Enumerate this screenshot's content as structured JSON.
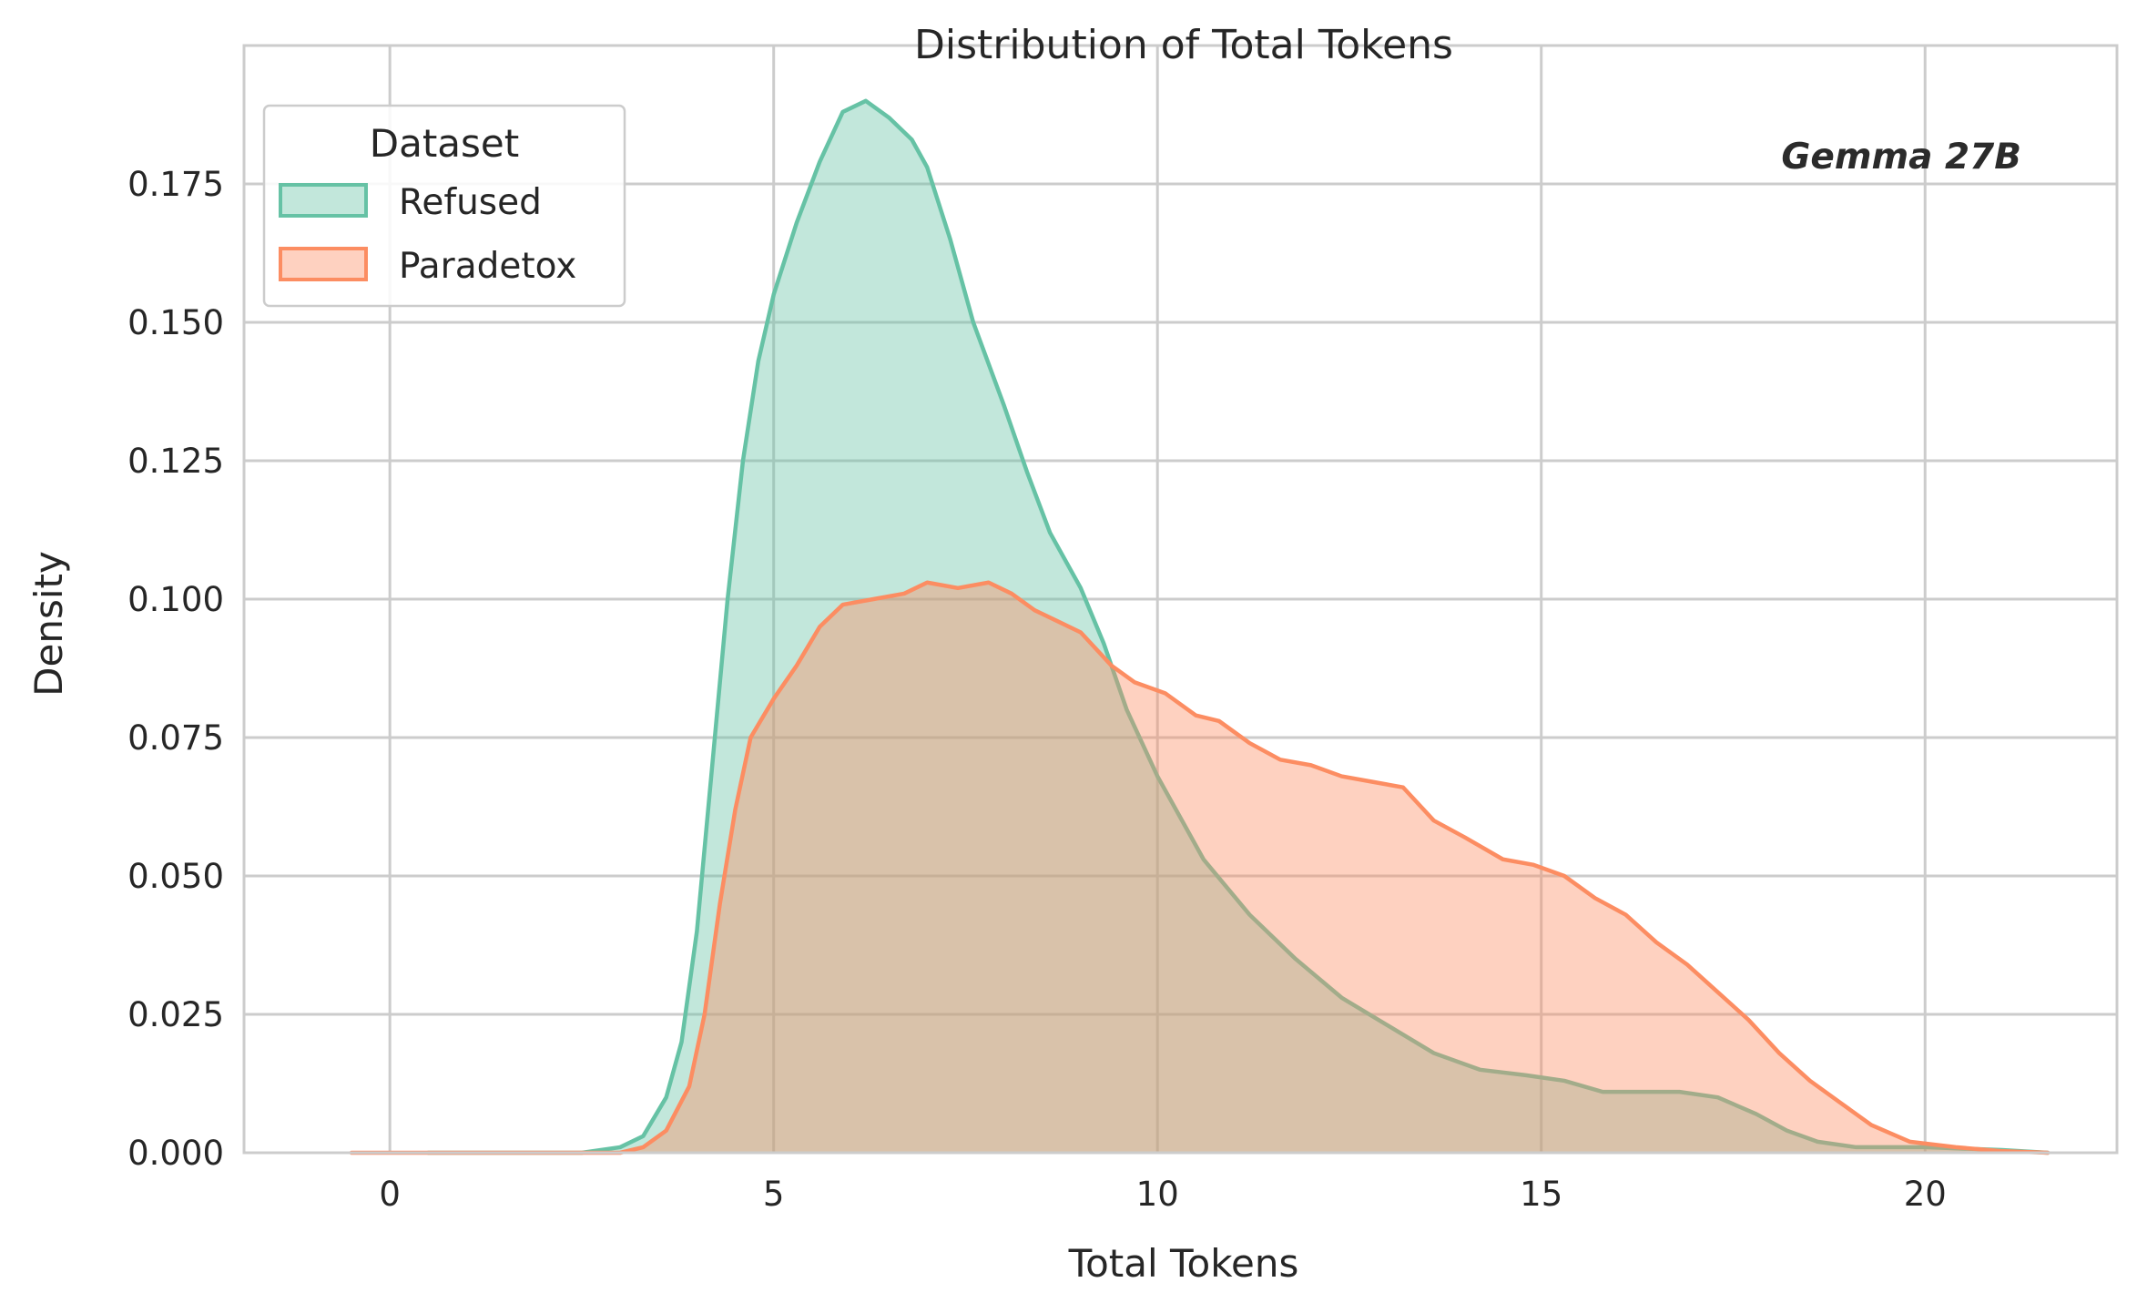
{
  "chart_data": {
    "type": "area",
    "title": "Distribution of Total Tokens",
    "xlabel": "Total Tokens",
    "ylabel": "Density",
    "xlim": [
      -1.9,
      22.5
    ],
    "ylim": [
      0,
      0.2
    ],
    "xticks": [
      0,
      5,
      10,
      15,
      20
    ],
    "yticks": [
      0.0,
      0.025,
      0.05,
      0.075,
      0.1,
      0.125,
      0.15,
      0.175
    ],
    "xtick_labels": [
      "0",
      "5",
      "10",
      "15",
      "20"
    ],
    "ytick_labels": [
      "0.000",
      "0.025",
      "0.050",
      "0.075",
      "0.100",
      "0.125",
      "0.150",
      "0.175"
    ],
    "grid": true,
    "legend": {
      "title": "Dataset",
      "position": "top-left"
    },
    "annotation": "Gemma 27B",
    "series": [
      {
        "name": "Refused",
        "color": "#66c2a5",
        "points": [
          [
            0.5,
            0.0
          ],
          [
            2.5,
            0.0
          ],
          [
            3.0,
            0.001
          ],
          [
            3.3,
            0.003
          ],
          [
            3.6,
            0.01
          ],
          [
            3.8,
            0.02
          ],
          [
            4.0,
            0.04
          ],
          [
            4.2,
            0.07
          ],
          [
            4.4,
            0.1
          ],
          [
            4.6,
            0.125
          ],
          [
            4.8,
            0.143
          ],
          [
            5.0,
            0.155
          ],
          [
            5.3,
            0.168
          ],
          [
            5.6,
            0.179
          ],
          [
            5.9,
            0.188
          ],
          [
            6.2,
            0.19
          ],
          [
            6.5,
            0.187
          ],
          [
            6.8,
            0.183
          ],
          [
            7.0,
            0.178
          ],
          [
            7.3,
            0.165
          ],
          [
            7.6,
            0.15
          ],
          [
            8.0,
            0.135
          ],
          [
            8.3,
            0.123
          ],
          [
            8.6,
            0.112
          ],
          [
            9.0,
            0.102
          ],
          [
            9.3,
            0.092
          ],
          [
            9.6,
            0.08
          ],
          [
            10.0,
            0.068
          ],
          [
            10.6,
            0.053
          ],
          [
            11.2,
            0.043
          ],
          [
            11.8,
            0.035
          ],
          [
            12.4,
            0.028
          ],
          [
            13.0,
            0.023
          ],
          [
            13.6,
            0.018
          ],
          [
            14.2,
            0.015
          ],
          [
            14.8,
            0.014
          ],
          [
            15.3,
            0.013
          ],
          [
            15.8,
            0.011
          ],
          [
            16.3,
            0.011
          ],
          [
            16.8,
            0.011
          ],
          [
            17.3,
            0.01
          ],
          [
            17.8,
            0.007
          ],
          [
            18.2,
            0.004
          ],
          [
            18.6,
            0.002
          ],
          [
            19.1,
            0.001
          ],
          [
            20.0,
            0.001
          ],
          [
            21.0,
            0.0005
          ],
          [
            21.6,
            0.0
          ]
        ]
      },
      {
        "name": "Paradetox",
        "color": "#fc8d62",
        "points": [
          [
            -0.5,
            0.0
          ],
          [
            3.0,
            0.0
          ],
          [
            3.3,
            0.001
          ],
          [
            3.6,
            0.004
          ],
          [
            3.9,
            0.012
          ],
          [
            4.1,
            0.025
          ],
          [
            4.3,
            0.045
          ],
          [
            4.5,
            0.062
          ],
          [
            4.7,
            0.075
          ],
          [
            5.0,
            0.082
          ],
          [
            5.3,
            0.088
          ],
          [
            5.6,
            0.095
          ],
          [
            5.9,
            0.099
          ],
          [
            6.3,
            0.1
          ],
          [
            6.7,
            0.101
          ],
          [
            7.0,
            0.103
          ],
          [
            7.4,
            0.102
          ],
          [
            7.8,
            0.103
          ],
          [
            8.1,
            0.101
          ],
          [
            8.4,
            0.098
          ],
          [
            8.7,
            0.096
          ],
          [
            9.0,
            0.094
          ],
          [
            9.4,
            0.088
          ],
          [
            9.7,
            0.085
          ],
          [
            10.1,
            0.083
          ],
          [
            10.5,
            0.079
          ],
          [
            10.8,
            0.078
          ],
          [
            11.2,
            0.074
          ],
          [
            11.6,
            0.071
          ],
          [
            12.0,
            0.07
          ],
          [
            12.4,
            0.068
          ],
          [
            12.8,
            0.067
          ],
          [
            13.2,
            0.066
          ],
          [
            13.6,
            0.06
          ],
          [
            14.0,
            0.057
          ],
          [
            14.5,
            0.053
          ],
          [
            14.9,
            0.052
          ],
          [
            15.3,
            0.05
          ],
          [
            15.7,
            0.046
          ],
          [
            16.1,
            0.043
          ],
          [
            16.5,
            0.038
          ],
          [
            16.9,
            0.034
          ],
          [
            17.3,
            0.029
          ],
          [
            17.7,
            0.024
          ],
          [
            18.1,
            0.018
          ],
          [
            18.5,
            0.013
          ],
          [
            18.9,
            0.009
          ],
          [
            19.3,
            0.005
          ],
          [
            19.8,
            0.002
          ],
          [
            20.4,
            0.001
          ],
          [
            21.0,
            0.0003
          ],
          [
            21.6,
            0.0
          ]
        ]
      }
    ]
  }
}
